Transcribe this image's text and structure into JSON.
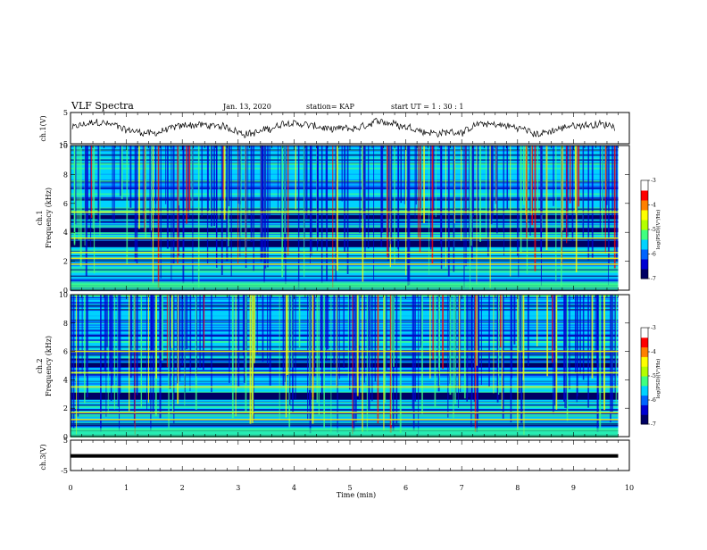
{
  "header": {
    "title": "VLF Spectra",
    "date": "Jan. 13, 2020",
    "station": "station= KAP",
    "start": "start UT =   1 : 30 : 1"
  },
  "colors": {
    "colormap": [
      "#000064",
      "#0000d2",
      "#0064ff",
      "#00d2ff",
      "#40ff80",
      "#b4ff00",
      "#ffff00",
      "#ff8000",
      "#ff0000",
      "#ffffff"
    ],
    "trace": "#000000"
  },
  "chart_data": [
    {
      "type": "line",
      "ylabel": "ch.1(V)",
      "ylim": [
        -5,
        5
      ],
      "yticks": [
        "5",
        "-5"
      ],
      "xlim": [
        0,
        10
      ],
      "description_values": "noisy voltage trace oscillating roughly between -3 and 3 V"
    },
    {
      "type": "heatmap",
      "ylabel_ch": "ch.1",
      "ylabel": "Frequency (kHz)",
      "ylim": [
        0,
        10
      ],
      "yticks": [
        "0",
        "2",
        "4",
        "6",
        "8",
        "10"
      ],
      "xlim": [
        0,
        9.8
      ],
      "colorbar": {
        "label": "log(PSD)(V²/Hz)",
        "range": [
          -7,
          -3
        ],
        "ticks": [
          "-3",
          "-4",
          "-5",
          "-6",
          "-7"
        ]
      },
      "dark_bands_khz": [
        [
          3.0,
          3.4
        ],
        [
          4.0,
          4.3
        ],
        [
          4.9,
          5.2
        ]
      ],
      "persistent_lines_khz": [
        1.8,
        2.2,
        2.6,
        3.6,
        5.4
      ]
    },
    {
      "type": "heatmap",
      "ylabel_ch": "ch.2",
      "ylabel": "Frequency (kHz)",
      "ylim": [
        0,
        10
      ],
      "yticks": [
        "0",
        "2",
        "4",
        "6",
        "8",
        "10"
      ],
      "xlim": [
        0,
        9.8
      ],
      "colorbar": {
        "label": "log(PSD)(V²/Hz)",
        "range": [
          -7,
          -3
        ],
        "ticks": [
          "-3",
          "-4",
          "-5",
          "-6",
          "-7"
        ]
      },
      "dark_bands_khz": [
        [
          2.6,
          3.1
        ],
        [
          4.9,
          5.2
        ]
      ],
      "persistent_lines_khz": [
        1.2,
        1.7,
        3.5,
        4.5,
        6.0
      ]
    },
    {
      "type": "line",
      "ylabel": "ch.3(V)",
      "ylim": [
        -5,
        5
      ],
      "yticks": [
        "5",
        "-5"
      ],
      "xlim": [
        0,
        10
      ],
      "xlabel": "Time (min)",
      "xticks": [
        "0",
        "1",
        "2",
        "3",
        "4",
        "5",
        "6",
        "7",
        "8",
        "9",
        "10"
      ],
      "constant_value": -0.2
    }
  ]
}
